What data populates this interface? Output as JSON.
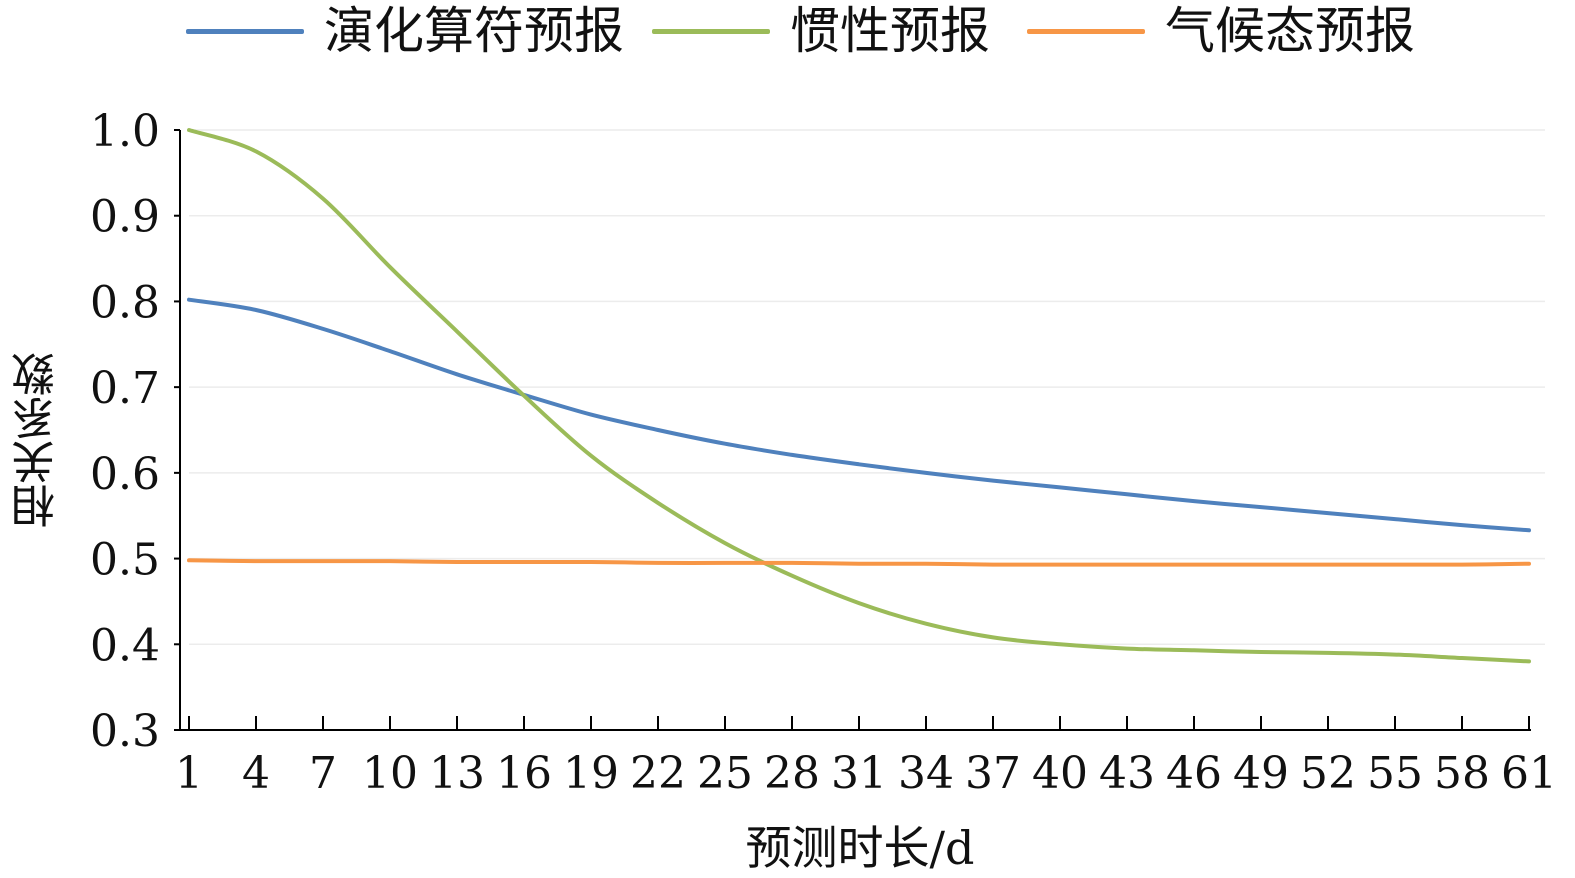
{
  "chart_data": {
    "type": "line",
    "title": "",
    "xlabel": "预测时长/d",
    "ylabel": "相关系数",
    "ylim": [
      0.3,
      1.0
    ],
    "yticks": [
      "0.3",
      "0.4",
      "0.5",
      "0.6",
      "0.7",
      "0.8",
      "0.9",
      "1.0"
    ],
    "x": [
      1,
      4,
      7,
      10,
      13,
      16,
      19,
      22,
      25,
      28,
      31,
      34,
      37,
      40,
      43,
      46,
      49,
      52,
      55,
      58,
      61
    ],
    "xticks": [
      "1",
      "4",
      "7",
      "10",
      "13",
      "16",
      "19",
      "22",
      "25",
      "28",
      "31",
      "34",
      "37",
      "40",
      "43",
      "46",
      "49",
      "52",
      "55",
      "58",
      "61"
    ],
    "grid": "horizontal",
    "legend": "top",
    "series": [
      {
        "name": "演化算符预报",
        "color": "#4f81bd",
        "values": [
          0.802,
          0.79,
          0.768,
          0.742,
          0.715,
          0.691,
          0.668,
          0.65,
          0.634,
          0.621,
          0.61,
          0.6,
          0.591,
          0.583,
          0.575,
          0.567,
          0.56,
          0.553,
          0.546,
          0.539,
          0.533
        ]
      },
      {
        "name": "惯性预报",
        "color": "#9bbb59",
        "values": [
          1.0,
          0.975,
          0.92,
          0.84,
          0.765,
          0.69,
          0.62,
          0.565,
          0.518,
          0.48,
          0.448,
          0.424,
          0.408,
          0.4,
          0.395,
          0.393,
          0.391,
          0.39,
          0.388,
          0.384,
          0.38
        ]
      },
      {
        "name": "气候态预报",
        "color": "#f79646",
        "values": [
          0.498,
          0.497,
          0.497,
          0.497,
          0.496,
          0.496,
          0.496,
          0.495,
          0.495,
          0.495,
          0.494,
          0.494,
          0.493,
          0.493,
          0.493,
          0.493,
          0.493,
          0.493,
          0.493,
          0.493,
          0.494
        ]
      }
    ]
  }
}
